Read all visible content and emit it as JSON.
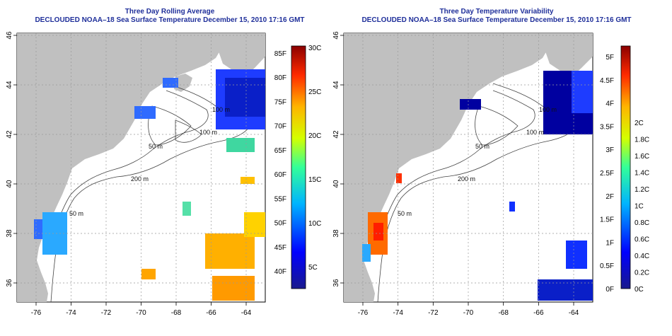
{
  "panels": {
    "left": {
      "title_line1": "Three Day Rolling Average",
      "title_line2": "DECLOUDED NOAA–18 Sea Surface Temperature December 15, 2010 17:16 GMT",
      "colorbar": {
        "left_labels": [
          "85F",
          "80F",
          "75F",
          "70F",
          "65F",
          "60F",
          "55F",
          "50F",
          "45F",
          "40F"
        ],
        "right_labels": [
          "30C",
          "25C",
          "20C",
          "15C",
          "10C",
          "5C"
        ]
      }
    },
    "right": {
      "title_line1": "Three Day Temperature Variability",
      "title_line2": "DECLOUDED NOAA–18 Sea Surface Temperature December 15, 2010 17:16 GMT",
      "colorbar": {
        "left_labels": [
          "5F",
          "4.5F",
          "4F",
          "3.5F",
          "3F",
          "2.5F",
          "2F",
          "1.5F",
          "1F",
          "0.5F",
          "0F"
        ],
        "right_labels": [
          "2C",
          "1.8C",
          "1.6C",
          "1.4C",
          "1.2C",
          "1C",
          "0.8C",
          "0.6C",
          "0.4C",
          "0.2C",
          "0C"
        ]
      }
    }
  },
  "axes": {
    "x_ticks": [
      "-76",
      "-74",
      "-72",
      "-70",
      "-68",
      "-66",
      "-64"
    ],
    "y_ticks": [
      "46",
      "44",
      "42",
      "40",
      "38",
      "36"
    ]
  },
  "contour_labels": [
    "100 m",
    "100 m",
    "50 m",
    "200 m",
    "50 m"
  ],
  "colors": {
    "land": "#c0c0c0",
    "title": "#1f2f9a",
    "contour": "#444444"
  }
}
